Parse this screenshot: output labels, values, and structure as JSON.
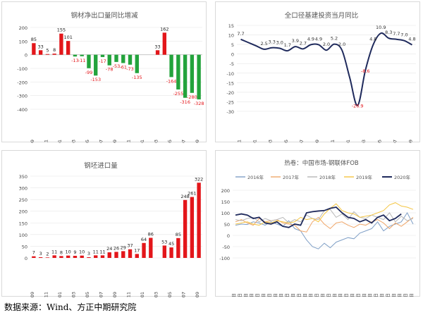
{
  "source_note": "数据来源：Wind、方正中期研究院",
  "chart_data": [
    {
      "id": "c1",
      "type": "bar",
      "title": "钢材净出口量同比增减",
      "categories": [
        "2018-09",
        "2018-10",
        "2018-11",
        "2018-12",
        "2019-01",
        "2019-02",
        "2019-03",
        "2019-04",
        "2019-05",
        "2019-06",
        "2019-07",
        "2019-08",
        "2019-09",
        "2019-10",
        "2019-11",
        "2019-12",
        "2020-01",
        "2020-02",
        "2020-03",
        "2020-04",
        "2020-05",
        "2020-06",
        "2020-07",
        "2020-08",
        "2020-09"
      ],
      "tick_labels": [
        "2018-09",
        "2018-11",
        "2019-01",
        "2019-03",
        "2019-05",
        "2019-07",
        "2019-09",
        "2019-11",
        "2020-01",
        "2020-03",
        "2020-05",
        "2020-07",
        "2020-09"
      ],
      "values": [
        85,
        33,
        5,
        8,
        155,
        101,
        -13,
        -11,
        -99,
        -153,
        -17,
        -78,
        -53,
        -61,
        -73,
        -135,
        null,
        null,
        33,
        162,
        -164,
        -255,
        -316,
        -280,
        -328
      ],
      "data_labels": [
        "85",
        "33",
        "5",
        "8",
        "155",
        "101",
        "-13",
        "-11",
        "-99",
        "-153",
        "-17",
        "-78",
        "-53",
        "-61",
        "-73",
        "-135",
        "",
        "",
        "33",
        "162",
        "-164",
        "-255",
        "-316",
        "-280",
        "-328"
      ],
      "ylim": [
        -400,
        200
      ],
      "yticks": [
        200,
        100,
        0,
        -100,
        -200,
        -300,
        -400
      ],
      "ytick_labels": [
        "200",
        "100",
        "0",
        "-100",
        "-200",
        "-300",
        "-400"
      ],
      "colors": {
        "positive": "#e3161a",
        "negative": "#23a33c",
        "label_positive": "#222222",
        "label_negative": "#e3161a"
      }
    },
    {
      "id": "c2",
      "type": "line",
      "title": "全口径基建投资当月同比",
      "categories": [
        "2018-11",
        "2018-12",
        "2019-01",
        "2019-02",
        "2019-03",
        "2019-04",
        "2019-05",
        "2019-06",
        "2019-07",
        "2019-08",
        "2019-09",
        "2019-10",
        "2019-11",
        "2019-12",
        "2020-01",
        "2020-02",
        "2020-03",
        "2020-04",
        "2020-05",
        "2020-06",
        "2020-07",
        "2020-08",
        "2020-09"
      ],
      "tick_labels": [
        "2018-11",
        "2019-01",
        "2019-03",
        "2019-05",
        "2019-07",
        "2019-09",
        "2019-11",
        "2020-01",
        "2020-03",
        "2020-05",
        "2020-07",
        "2020-09"
      ],
      "values": [
        7.7,
        null,
        null,
        2.5,
        3.3,
        3.0,
        1.7,
        3.9,
        2.7,
        4.9,
        4.9,
        2.0,
        5.2,
        2.0,
        null,
        -26.9,
        -8.6,
        4.8,
        10.9,
        8.3,
        7.7,
        7.0,
        4.8
      ],
      "data_labels": [
        "7.7",
        "",
        "",
        "2.5",
        "3.3",
        "3.0",
        "1.7",
        "3.9",
        "2.7",
        "4.9",
        "4.9",
        "2.0",
        "5.2",
        "2.0",
        "",
        "-26.9",
        "-8.6",
        "4.8",
        "10.9",
        "8.3",
        "7.7",
        "7.0",
        "4.8"
      ],
      "ylim": [
        -30,
        15
      ],
      "yticks": [
        15,
        10,
        5,
        0,
        -5,
        -10,
        -15,
        -20,
        -25,
        -30
      ],
      "ytick_labels": [
        "15",
        "10",
        "5",
        "0",
        "-5",
        "-10",
        "-15",
        "-20",
        "-25",
        "-30"
      ],
      "colors": {
        "line": "#1f2a5c",
        "label": "#333333",
        "label_negative": "#e3161a"
      }
    },
    {
      "id": "c3",
      "type": "bar",
      "title": "钢坯进口量",
      "categories": [
        "2018-09",
        "2018-10",
        "2018-11",
        "2018-12",
        "2019-01",
        "2019-02",
        "2019-03",
        "2019-04",
        "2019-05",
        "2019-06",
        "2019-07",
        "2019-08",
        "2019-09",
        "2019-10",
        "2019-11",
        "2019-12",
        "2020-01",
        "2020-02",
        "2020-03",
        "2020-04",
        "2020-05",
        "2020-06",
        "2020-07",
        "2020-08",
        "2020-09"
      ],
      "tick_labels": [
        "2018-09",
        "2018-11",
        "2019-01",
        "2019-03",
        "2019-05",
        "2019-07",
        "2019-09",
        "2019-11",
        "2020-01",
        "2020-03",
        "2020-05",
        "2020-07",
        "2020-09"
      ],
      "values": [
        7,
        3,
        2,
        11,
        8,
        10,
        9,
        10,
        3,
        11,
        11,
        24,
        26,
        29,
        37,
        17,
        64,
        86,
        null,
        53,
        45,
        85,
        248,
        261,
        322
      ],
      "data_labels": [
        "7",
        "3",
        "2",
        "11",
        "8",
        "10",
        "9",
        "10",
        "3",
        "11",
        "11",
        "24",
        "26",
        "29",
        "37",
        "17",
        "64",
        "86",
        "",
        "53",
        "45",
        "85",
        "248",
        "261",
        "322"
      ],
      "ylim": [
        0,
        350
      ],
      "yticks": [
        350,
        300,
        250,
        200,
        150,
        100,
        50,
        0
      ],
      "ytick_labels": [
        "350",
        "300",
        "250",
        "200",
        "150",
        "100",
        "50",
        "0"
      ],
      "colors": {
        "bar": "#e3161a",
        "label": "#222222"
      }
    },
    {
      "id": "c4",
      "type": "line",
      "title": "热卷：中国市场-钢联体FOB",
      "legend": [
        "2016年",
        "2017年",
        "2018年",
        "2019年",
        "2020年"
      ],
      "legend_placement": "top",
      "colors": [
        "#7f9fc6",
        "#f0a76a",
        "#b7b7b7",
        "#f4c542",
        "#1f2a5c"
      ],
      "x_labels": [
        "1月1日",
        "1月13日",
        "1月25日",
        "2月6日",
        "2月18日",
        "3月1日",
        "3月13日",
        "3月25日",
        "4月6日",
        "4月18日",
        "4月30日",
        "5月12日",
        "5月24日",
        "6月5日",
        "6月17日",
        "6月29日",
        "7月11日",
        "7月23日",
        "8月4日",
        "8月16日",
        "8月28日",
        "9月9日",
        "9月21日",
        "10月3日",
        "10月15日",
        "10月27日",
        "11月8日",
        "11月20日",
        "12月2日",
        "12月14日",
        "12月26日"
      ],
      "ylim": [
        -100,
        200
      ],
      "yticks": [
        200,
        150,
        100,
        50,
        0,
        -50,
        -100
      ],
      "ytick_labels": [
        "200",
        "150",
        "100",
        "50",
        "0",
        "-50",
        "-100"
      ],
      "series": [
        {
          "name": "2016年",
          "values": [
            45,
            50,
            48,
            60,
            55,
            45,
            60,
            50,
            40,
            65,
            30,
            20,
            -20,
            -50,
            -60,
            -35,
            -55,
            -30,
            -20,
            -10,
            -15,
            10,
            20,
            30,
            60,
            20,
            40,
            50,
            60,
            100,
            50
          ]
        },
        {
          "name": "2017年",
          "values": [
            60,
            70,
            55,
            45,
            75,
            60,
            65,
            70,
            55,
            50,
            45,
            20,
            15,
            60,
            80,
            50,
            30,
            55,
            60,
            45,
            35,
            50,
            45,
            60,
            70,
            55,
            30,
            55,
            40,
            60,
            80
          ]
        },
        {
          "name": "2018年",
          "values": [
            70,
            65,
            75,
            80,
            60,
            75,
            65,
            70,
            80,
            55,
            70,
            60,
            90,
            75,
            70,
            110,
            115,
            80,
            95,
            70,
            105,
            80,
            75,
            90,
            80,
            70,
            100,
            60,
            85,
            65,
            75
          ]
        },
        {
          "name": "2019年",
          "values": [
            50,
            55,
            60,
            50,
            45,
            60,
            55,
            65,
            60,
            55,
            60,
            80,
            70,
            75,
            60,
            95,
            120,
            140,
            110,
            100,
            95,
            80,
            85,
            90,
            100,
            110,
            135,
            145,
            130,
            125,
            115
          ]
        },
        {
          "name": "2020年",
          "values": [
            90,
            95,
            90,
            75,
            80,
            55,
            50,
            60,
            40,
            35,
            50,
            45,
            100,
            105,
            108,
            110,
            120,
            125,
            100,
            80,
            75,
            60,
            70,
            55,
            80,
            90,
            65,
            75,
            95,
            null,
            null
          ]
        }
      ]
    }
  ]
}
